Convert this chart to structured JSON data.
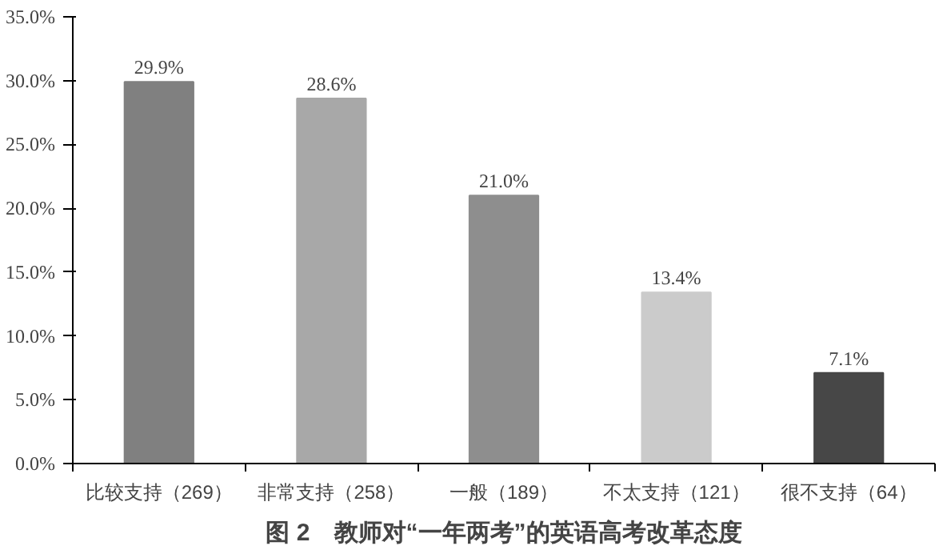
{
  "chart_data": {
    "type": "bar",
    "title": "图 2　教师对“一年两考”的英语高考改革态度",
    "categories": [
      "比较支持（269）",
      "非常支持（258）",
      "一般（189）",
      "不太支持（121）",
      "很不支持（64）"
    ],
    "values": [
      29.9,
      28.6,
      21.0,
      13.4,
      7.1
    ],
    "colors": [
      "#808080",
      "#a8a8a8",
      "#8e8e8e",
      "#cbcbcb",
      "#474747"
    ],
    "value_labels": [
      "29.9%",
      "28.6%",
      "21.0%",
      "13.4%",
      "7.1%"
    ],
    "ylim": [
      0,
      35
    ],
    "yticks": [
      {
        "value": 0,
        "label": "0.0%"
      },
      {
        "value": 5,
        "label": "5.0%"
      },
      {
        "value": 10,
        "label": "10.0%"
      },
      {
        "value": 15,
        "label": "15.0%"
      },
      {
        "value": 20,
        "label": "20.0%"
      },
      {
        "value": 25,
        "label": "25.0%"
      },
      {
        "value": 30,
        "label": "30.0%"
      },
      {
        "value": 35,
        "label": "35.0%"
      }
    ]
  }
}
